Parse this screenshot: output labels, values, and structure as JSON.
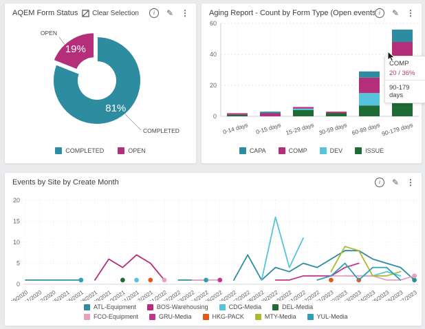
{
  "icons": {
    "info_glyph": "i",
    "edit_glyph": "✎",
    "menu_glyph": "⋮"
  },
  "panels": {
    "form_status": {
      "title": "AQEM Form Status",
      "toolbar": {
        "clear_selection_label": "Clear Selection"
      },
      "chart_data": {
        "type": "pie",
        "donut": true,
        "labels": [
          "COMPLETED",
          "OPEN"
        ],
        "values": [
          81,
          19
        ],
        "value_suffix": "%",
        "colors": [
          "#2e8ca0",
          "#b52e79"
        ],
        "exploded_slice": "OPEN",
        "legend_position": "bottom"
      }
    },
    "aging_report": {
      "title": "Aging Report - Count by Form Type (Open events only)",
      "chart_data": {
        "type": "bar",
        "stacked": true,
        "categories": [
          "0-14 days",
          "0-15 days",
          "15-29 days",
          "30-59 days",
          "60-89 days",
          "90-179 days"
        ],
        "series": [
          {
            "name": "CAPA",
            "color": "#2e8ca0",
            "values": [
              0,
              1,
              0,
              0,
              4,
              8
            ]
          },
          {
            "name": "COMP",
            "color": "#b52e79",
            "values": [
              1,
              2,
              1,
              1,
              10,
              20
            ]
          },
          {
            "name": "DEV",
            "color": "#56c3dc",
            "values": [
              0,
              0,
              1,
              0,
              8,
              5
            ]
          },
          {
            "name": "ISSUE",
            "color": "#1e6b34",
            "values": [
              1,
              0,
              4,
              2,
              7,
              23
            ]
          }
        ],
        "stack_bottom_to_top": [
          "ISSUE",
          "DEV",
          "COMP",
          "CAPA"
        ],
        "ylim": [
          0,
          60
        ],
        "yticks": [
          0,
          20,
          40,
          60
        ],
        "legend_position": "bottom",
        "grid": true
      },
      "tooltip": {
        "series": "COMP",
        "value": "20 / 36%",
        "category": "90-179 days"
      }
    },
    "events_by_site": {
      "title": "Events by Site by Create Month",
      "chart_data": {
        "type": "line",
        "categories": [
          "09/2020",
          "11/2020",
          "12/2020",
          "05/2021",
          "06/2021",
          "08/2021",
          "09/2021",
          "10/2021",
          "11/2021",
          "12/2021",
          "01/2022",
          "02/2022",
          "03/2022",
          "04/2022",
          "05/2022",
          "06/2022",
          "07/2022",
          "08/2022",
          "09/2022",
          "10/2022",
          "11/2022",
          "12/2022",
          "01/2023",
          "02/2023",
          "03/2023",
          "04/2023",
          "05/2023",
          "06/2023",
          "07/2023"
        ],
        "series": [
          {
            "name": "ATL-Equipment",
            "color": "#2e8ca0",
            "values": [
              1,
              1,
              1,
              1,
              1,
              null,
              null,
              null,
              null,
              null,
              null,
              1,
              1,
              1,
              null,
              1,
              7,
              1,
              4,
              3,
              5,
              4,
              6,
              8,
              8,
              6,
              5,
              4,
              1
            ]
          },
          {
            "name": "BOS-Warehousing",
            "color": "#b52e79",
            "values": [
              null,
              null,
              null,
              null,
              null,
              1,
              6,
              4,
              7,
              5,
              1,
              null,
              null,
              null,
              null,
              null,
              null,
              null,
              null,
              null,
              null,
              null,
              null,
              null,
              null,
              null,
              null,
              null,
              null
            ]
          },
          {
            "name": "CDG-Media",
            "color": "#56c3dc",
            "values": [
              null,
              null,
              null,
              null,
              null,
              null,
              null,
              null,
              1,
              null,
              null,
              null,
              null,
              null,
              null,
              null,
              null,
              1,
              16,
              4,
              11,
              null,
              null,
              2,
              2,
              2,
              3,
              2,
              null
            ]
          },
          {
            "name": "DEL-Media",
            "color": "#1e6b34",
            "values": [
              null,
              null,
              null,
              null,
              null,
              null,
              null,
              1,
              null,
              null,
              null,
              null,
              null,
              null,
              null,
              null,
              null,
              null,
              null,
              null,
              null,
              null,
              null,
              null,
              null,
              null,
              null,
              null,
              null
            ]
          },
          {
            "name": "FCO-Equipment",
            "color": "#e8a0bf",
            "values": [
              null,
              null,
              null,
              null,
              null,
              null,
              null,
              null,
              null,
              null,
              1,
              null,
              1,
              1,
              1,
              null,
              null,
              null,
              null,
              null,
              null,
              null,
              2,
              2,
              2,
              2,
              1,
              1,
              2
            ]
          },
          {
            "name": "GRU-Media",
            "color": "#c2368a",
            "values": [
              null,
              null,
              null,
              null,
              null,
              null,
              null,
              null,
              null,
              null,
              null,
              null,
              null,
              null,
              1,
              null,
              null,
              null,
              1,
              1,
              2,
              2,
              2,
              4,
              5,
              null,
              null,
              null,
              null
            ]
          },
          {
            "name": "HKG-PACK",
            "color": "#e05a20",
            "values": [
              null,
              null,
              null,
              null,
              null,
              null,
              null,
              null,
              null,
              1,
              null,
              null,
              null,
              null,
              null,
              null,
              null,
              null,
              null,
              null,
              null,
              null,
              1,
              null,
              1,
              null,
              null,
              null,
              null
            ]
          },
          {
            "name": "MTY-Media",
            "color": "#abb92f",
            "values": [
              null,
              null,
              null,
              null,
              null,
              null,
              null,
              null,
              null,
              null,
              null,
              null,
              null,
              null,
              null,
              null,
              null,
              null,
              null,
              null,
              null,
              null,
              3,
              9,
              8,
              2,
              2,
              3,
              null
            ]
          },
          {
            "name": "YUL-Media",
            "color": "#2f9fb4",
            "values": [
              null,
              null,
              null,
              null,
              1,
              null,
              null,
              null,
              null,
              null,
              null,
              null,
              null,
              1,
              null,
              null,
              null,
              null,
              null,
              null,
              null,
              1,
              2,
              5,
              1,
              4,
              4,
              1,
              null
            ]
          }
        ],
        "ylim": [
          0,
          20
        ],
        "yticks": [
          0,
          5,
          10,
          15,
          20
        ],
        "legend_position": "bottom",
        "grid": true
      }
    }
  }
}
